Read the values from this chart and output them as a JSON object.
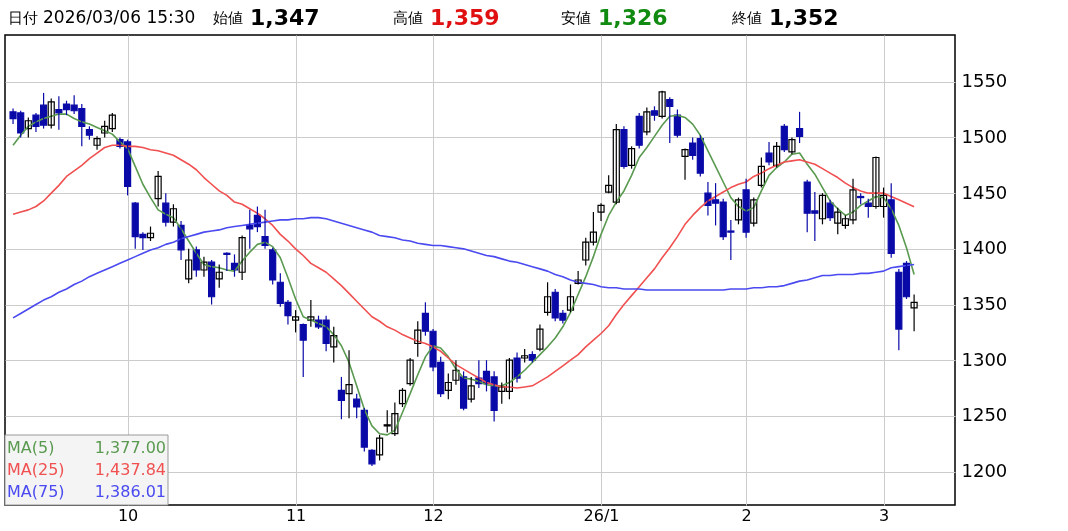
{
  "chart_data": {
    "type": "candlestick",
    "annotations": [
      "日付",
      "2026/03/06 15:30",
      "始値",
      "1,347",
      "高値",
      "1,359",
      "安値",
      "1,326",
      "終値",
      "1,352",
      "1,377.00",
      "1,437.84",
      "1,386.01"
    ],
    "categories": [
      null,
      null,
      null,
      null,
      null,
      null,
      null,
      null,
      null,
      null,
      null,
      null,
      null,
      null,
      null,
      "10",
      null,
      null,
      null,
      null,
      null,
      null,
      null,
      null,
      null,
      null,
      null,
      null,
      null,
      null,
      null,
      null,
      null,
      null,
      null,
      null,
      null,
      "11",
      null,
      null,
      null,
      null,
      null,
      null,
      null,
      null,
      null,
      null,
      null,
      null,
      null,
      null,
      null,
      null,
      null,
      "12",
      null,
      null,
      null,
      null,
      null,
      null,
      null,
      null,
      null,
      null,
      null,
      null,
      null,
      null,
      null,
      null,
      null,
      null,
      null,
      null,
      null,
      "26/1",
      null,
      null,
      null,
      null,
      null,
      null,
      null,
      null,
      null,
      null,
      null,
      null,
      null,
      null,
      null,
      null,
      null,
      null,
      "2",
      null,
      null,
      null,
      null,
      null,
      null,
      null,
      null,
      null,
      null,
      null,
      null,
      null,
      null,
      null,
      null,
      null,
      "3",
      null,
      null,
      null,
      null
    ],
    "ohlc": [
      [
        1523,
        1526,
        1512,
        1517
      ],
      [
        1522,
        1524,
        1500,
        1504
      ],
      [
        1508,
        1518,
        1500,
        1515
      ],
      [
        1520,
        1522,
        1505,
        1510
      ],
      [
        1529,
        1540,
        1508,
        1511
      ],
      [
        1511,
        1535,
        1508,
        1532
      ],
      [
        1525,
        1537,
        1507,
        1522
      ],
      [
        1530,
        1533,
        1520,
        1525
      ],
      [
        1529,
        1538,
        1521,
        1524
      ],
      [
        1526,
        1530,
        1492,
        1510
      ],
      [
        1507,
        1510,
        1498,
        1502
      ],
      [
        1493,
        1501,
        1489,
        1499
      ],
      [
        1504,
        1515,
        1500,
        1510
      ],
      [
        1508,
        1522,
        1505,
        1520
      ],
      [
        1498,
        1500,
        1490,
        1492
      ],
      [
        1496,
        1498,
        1448,
        1456
      ],
      [
        1441,
        1442,
        1400,
        1411
      ],
      [
        1413,
        1415,
        1399,
        1410
      ],
      [
        1410,
        1420,
        1407,
        1414
      ],
      [
        1445,
        1470,
        1438,
        1465
      ],
      [
        1441,
        1450,
        1420,
        1424
      ],
      [
        1424,
        1440,
        1420,
        1436
      ],
      [
        1421,
        1425,
        1390,
        1399
      ],
      [
        1373,
        1400,
        1369,
        1390
      ],
      [
        1399,
        1402,
        1375,
        1381
      ],
      [
        1381,
        1393,
        1375,
        1388
      ],
      [
        1388,
        1390,
        1350,
        1357
      ],
      [
        1373,
        1386,
        1365,
        1379
      ],
      [
        1396,
        1397,
        1380,
        1395
      ],
      [
        1387,
        1395,
        1375,
        1381
      ],
      [
        1379,
        1412,
        1372,
        1410
      ],
      [
        1421,
        1435,
        1400,
        1418
      ],
      [
        1430,
        1438,
        1415,
        1420
      ],
      [
        1411,
        1435,
        1400,
        1403
      ],
      [
        1399,
        1401,
        1368,
        1372
      ],
      [
        1370,
        1378,
        1348,
        1351
      ],
      [
        1352,
        1354,
        1332,
        1340
      ],
      [
        1336,
        1345,
        1325,
        1339
      ],
      [
        1332,
        1333,
        1285,
        1318
      ],
      [
        1336,
        1354,
        1330,
        1339
      ],
      [
        1336,
        1340,
        1328,
        1330
      ],
      [
        1336,
        1340,
        1308,
        1315
      ],
      [
        1312,
        1330,
        1298,
        1322
      ],
      [
        1273,
        1285,
        1247,
        1264
      ],
      [
        1270,
        1309,
        1248,
        1278
      ],
      [
        1265,
        1270,
        1248,
        1258
      ],
      [
        1255,
        1257,
        1218,
        1222
      ],
      [
        1219,
        1220,
        1205,
        1207
      ],
      [
        1215,
        1233,
        1210,
        1230
      ],
      [
        1241,
        1255,
        1235,
        1242
      ],
      [
        1234,
        1262,
        1232,
        1252
      ],
      [
        1261,
        1275,
        1258,
        1273
      ],
      [
        1279,
        1302,
        1277,
        1300
      ],
      [
        1315,
        1335,
        1303,
        1327
      ],
      [
        1342,
        1352,
        1322,
        1326
      ],
      [
        1326,
        1328,
        1290,
        1294
      ],
      [
        1298,
        1303,
        1267,
        1270
      ],
      [
        1273,
        1288,
        1265,
        1280
      ],
      [
        1282,
        1300,
        1278,
        1291
      ],
      [
        1285,
        1290,
        1255,
        1257
      ],
      [
        1265,
        1285,
        1262,
        1277
      ],
      [
        1284,
        1300,
        1275,
        1279
      ],
      [
        1290,
        1300,
        1272,
        1279
      ],
      [
        1285,
        1290,
        1245,
        1255
      ],
      [
        1272,
        1280,
        1261,
        1276
      ],
      [
        1272,
        1302,
        1265,
        1300
      ],
      [
        1302,
        1307,
        1280,
        1284
      ],
      [
        1302,
        1310,
        1298,
        1304
      ],
      [
        1305,
        1308,
        1298,
        1300
      ],
      [
        1310,
        1332,
        1308,
        1328
      ],
      [
        1343,
        1370,
        1340,
        1357
      ],
      [
        1361,
        1364,
        1335,
        1338
      ],
      [
        1342,
        1345,
        1333,
        1336
      ],
      [
        1345,
        1368,
        1343,
        1357
      ],
      [
        1369,
        1380,
        1368,
        1372
      ],
      [
        1390,
        1410,
        1385,
        1406
      ],
      [
        1406,
        1433,
        1403,
        1415
      ],
      [
        1433,
        1441,
        1425,
        1439
      ],
      [
        1451,
        1466,
        1450,
        1457
      ],
      [
        1442,
        1512,
        1440,
        1507
      ],
      [
        1507,
        1510,
        1472,
        1474
      ],
      [
        1475,
        1492,
        1472,
        1490
      ],
      [
        1519,
        1522,
        1490,
        1493
      ],
      [
        1505,
        1527,
        1502,
        1523
      ],
      [
        1524,
        1528,
        1515,
        1520
      ],
      [
        1519,
        1542,
        1517,
        1541
      ],
      [
        1534,
        1536,
        1495,
        1528
      ],
      [
        1520,
        1525,
        1500,
        1502
      ],
      [
        1483,
        1490,
        1462,
        1489
      ],
      [
        1495,
        1500,
        1480,
        1484
      ],
      [
        1499,
        1502,
        1465,
        1468
      ],
      [
        1450,
        1460,
        1430,
        1439
      ],
      [
        1444,
        1459,
        1421,
        1441
      ],
      [
        1442,
        1445,
        1408,
        1411
      ],
      [
        1416,
        1426,
        1390,
        1415
      ],
      [
        1426,
        1446,
        1422,
        1444
      ],
      [
        1453,
        1463,
        1410,
        1415
      ],
      [
        1423,
        1446,
        1420,
        1444
      ],
      [
        1457,
        1482,
        1455,
        1474
      ],
      [
        1486,
        1496,
        1475,
        1478
      ],
      [
        1475,
        1496,
        1473,
        1492
      ],
      [
        1510,
        1512,
        1487,
        1489
      ],
      [
        1487,
        1500,
        1485,
        1498
      ],
      [
        1508,
        1523,
        1495,
        1501
      ],
      [
        1460,
        1462,
        1415,
        1432
      ],
      [
        1434,
        1451,
        1407,
        1432
      ],
      [
        1427,
        1450,
        1422,
        1448
      ],
      [
        1441,
        1444,
        1425,
        1428
      ],
      [
        1423,
        1437,
        1413,
        1433
      ],
      [
        1421,
        1430,
        1418,
        1427
      ],
      [
        1426,
        1463,
        1422,
        1453
      ],
      [
        1447,
        1450,
        1440,
        1446
      ],
      [
        1441,
        1445,
        1428,
        1438
      ],
      [
        1438,
        1483,
        1436,
        1482
      ],
      [
        1438,
        1455,
        1428,
        1448
      ],
      [
        1444,
        1459,
        1392,
        1396
      ],
      [
        1379,
        1382,
        1309,
        1328
      ],
      [
        1387,
        1389,
        1355,
        1357
      ],
      [
        1347,
        1359,
        1326,
        1352
      ]
    ],
    "colors": [
      "#0a0aa8",
      "#0a0aa8",
      "#ffffff",
      "#0a0aa8",
      "#0a0aa8",
      "#ffffff",
      "#0a0aa8",
      "#0a0aa8",
      "#0a0aa8",
      "#0a0aa8",
      "#0a0aa8",
      "#ffffff",
      "#ffffff",
      "#ffffff",
      "#0a0aa8",
      "#0a0aa8",
      "#0a0aa8",
      "#0a0aa8",
      "#ffffff",
      "#ffffff",
      "#0a0aa8",
      "#ffffff",
      "#0a0aa8",
      "#ffffff",
      "#0a0aa8",
      "#ffffff",
      "#0a0aa8",
      "#ffffff",
      "#0a0aa8",
      "#0a0aa8",
      "#ffffff",
      "#0a0aa8",
      "#0a0aa8",
      "#0a0aa8",
      "#0a0aa8",
      "#0a0aa8",
      "#0a0aa8",
      "#ffffff",
      "#0a0aa8",
      "#ffffff",
      "#0a0aa8",
      "#0a0aa8",
      "#ffffff",
      "#0a0aa8",
      "#ffffff",
      "#0a0aa8",
      "#0a0aa8",
      "#0a0aa8",
      "#ffffff",
      "#ffffff",
      "#ffffff",
      "#ffffff",
      "#ffffff",
      "#ffffff",
      "#0a0aa8",
      "#0a0aa8",
      "#0a0aa8",
      "#ffffff",
      "#ffffff",
      "#0a0aa8",
      "#ffffff",
      "#0a0aa8",
      "#0a0aa8",
      "#0a0aa8",
      "#ffffff",
      "#ffffff",
      "#0a0aa8",
      "#ffffff",
      "#0a0aa8",
      "#ffffff",
      "#ffffff",
      "#0a0aa8",
      "#0a0aa8",
      "#ffffff",
      "#ffffff",
      "#ffffff",
      "#ffffff",
      "#ffffff",
      "#ffffff",
      "#ffffff",
      "#0a0aa8",
      "#ffffff",
      "#0a0aa8",
      "#ffffff",
      "#0a0aa8",
      "#ffffff",
      "#0a0aa8",
      "#0a0aa8",
      "#ffffff",
      "#0a0aa8",
      "#0a0aa8",
      "#0a0aa8",
      "#0a0aa8",
      "#0a0aa8",
      "#0a0aa8",
      "#ffffff",
      "#0a0aa8",
      "#ffffff",
      "#ffffff",
      "#0a0aa8",
      "#ffffff",
      "#0a0aa8",
      "#ffffff",
      "#0a0aa8",
      "#0a0aa8",
      "#0a0aa8",
      "#ffffff",
      "#0a0aa8",
      "#ffffff",
      "#ffffff",
      "#ffffff",
      "#0a0aa8",
      "#0a0aa8",
      "#ffffff",
      "#ffffff",
      "#0a0aa8",
      "#0a0aa8",
      "#0a0aa8",
      "#ffffff"
    ],
    "series": [
      {
        "type": "line",
        "name": "MA(5)",
        "color": "#5a9a50",
        "values": [
          1493,
          1502,
          1510,
          1514,
          1517,
          1519,
          1521,
          1521,
          1517,
          1514,
          1512,
          1509,
          1506,
          1503,
          1496,
          1490,
          1474,
          1458,
          1446,
          1435,
          1431,
          1428,
          1418,
          1407,
          1396,
          1386,
          1384,
          1383,
          1381,
          1380,
          1389,
          1397,
          1404,
          1406,
          1402,
          1392,
          1374,
          1355,
          1339,
          1336,
          1333,
          1330,
          1323,
          1313,
          1298,
          1277,
          1256,
          1241,
          1234,
          1233,
          1237,
          1253,
          1270,
          1287,
          1303,
          1313,
          1311,
          1303,
          1292,
          1284,
          1283,
          1281,
          1278,
          1277,
          1277,
          1280,
          1285,
          1291,
          1298,
          1305,
          1312,
          1320,
          1330,
          1343,
          1359,
          1375,
          1393,
          1413,
          1430,
          1442,
          1452,
          1466,
          1482,
          1491,
          1501,
          1511,
          1519,
          1520,
          1518,
          1512,
          1502,
          1488,
          1474,
          1460,
          1446,
          1438,
          1434,
          1437,
          1452,
          1466,
          1473,
          1478,
          1485,
          1486,
          1476,
          1467,
          1455,
          1443,
          1436,
          1430,
          1433,
          1439,
          1443,
          1447,
          1446,
          1436,
          1421,
          1401,
          1377
        ]
      },
      {
        "type": "line",
        "name": "MA(25)",
        "color": "#f05050",
        "values": [
          1431,
          1433,
          1435,
          1438,
          1443,
          1450,
          1457,
          1465,
          1470,
          1475,
          1481,
          1486,
          1491,
          1493,
          1493,
          1492,
          1492,
          1491,
          1489,
          1488,
          1486,
          1484,
          1480,
          1476,
          1471,
          1464,
          1458,
          1452,
          1448,
          1442,
          1440,
          1436,
          1432,
          1427,
          1421,
          1413,
          1407,
          1400,
          1394,
          1387,
          1383,
          1379,
          1373,
          1367,
          1360,
          1353,
          1346,
          1339,
          1335,
          1330,
          1327,
          1323,
          1320,
          1317,
          1315,
          1312,
          1308,
          1302,
          1296,
          1292,
          1288,
          1284,
          1280,
          1278,
          1276,
          1276,
          1275,
          1276,
          1277,
          1281,
          1285,
          1290,
          1295,
          1300,
          1305,
          1312,
          1318,
          1324,
          1331,
          1341,
          1350,
          1358,
          1366,
          1374,
          1382,
          1392,
          1401,
          1411,
          1422,
          1430,
          1437,
          1443,
          1447,
          1451,
          1455,
          1458,
          1460,
          1465,
          1468,
          1472,
          1475,
          1478,
          1479,
          1480,
          1478,
          1476,
          1472,
          1468,
          1464,
          1459,
          1455,
          1452,
          1450,
          1450,
          1450,
          1447,
          1444,
          1441,
          1437.84
        ]
      },
      {
        "type": "line",
        "name": "MA(75)",
        "color": "#4a4af0",
        "values": [
          1338,
          1342,
          1346,
          1350,
          1354,
          1357,
          1361,
          1364,
          1368,
          1371,
          1375,
          1378,
          1381,
          1384,
          1387,
          1390,
          1393,
          1396,
          1399,
          1401,
          1404,
          1406,
          1409,
          1411,
          1413,
          1415,
          1416,
          1417,
          1419,
          1420,
          1421,
          1422,
          1423,
          1424,
          1425,
          1426,
          1426,
          1427,
          1427,
          1428,
          1428,
          1427,
          1425,
          1423,
          1421,
          1419,
          1417,
          1415,
          1412,
          1411,
          1410,
          1408,
          1407,
          1405,
          1404,
          1403,
          1403,
          1402,
          1401,
          1400,
          1398,
          1396,
          1394,
          1393,
          1391,
          1389,
          1388,
          1386,
          1384,
          1382,
          1380,
          1377,
          1375,
          1372,
          1370,
          1369,
          1368,
          1366,
          1365,
          1365,
          1364,
          1364,
          1364,
          1363,
          1363,
          1363,
          1363,
          1363,
          1363,
          1363,
          1363,
          1363,
          1363,
          1363,
          1364,
          1364,
          1364,
          1365,
          1365,
          1366,
          1366,
          1367,
          1369,
          1371,
          1372,
          1374,
          1376,
          1376,
          1377,
          1377,
          1377,
          1378,
          1378,
          1379,
          1380,
          1383,
          1384,
          1385,
          1386.01
        ]
      }
    ],
    "ylim": [
      1170,
      1592
    ],
    "yticks": [
      1200,
      1250,
      1300,
      1350,
      1400,
      1450,
      1500,
      1550
    ],
    "grid": true,
    "legend": "bottom left"
  }
}
